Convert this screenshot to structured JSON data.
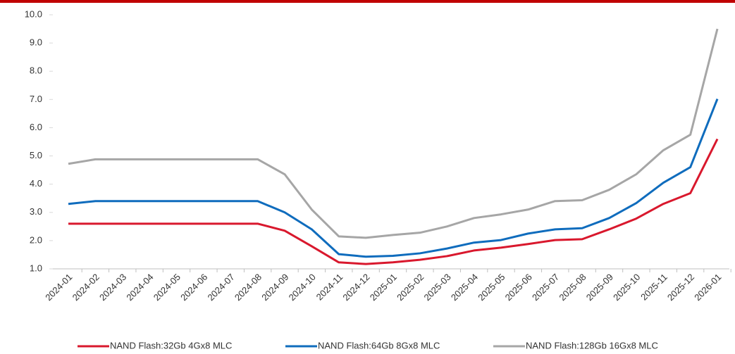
{
  "chart_data": {
    "type": "line",
    "categories": [
      "2024-01",
      "2024-02",
      "2024-03",
      "2024-04",
      "2024-05",
      "2024-06",
      "2024-07",
      "2024-08",
      "2024-09",
      "2024-10",
      "2024-11",
      "2024-12",
      "2025-01",
      "2025-02",
      "2025-03",
      "2025-04",
      "2025-05",
      "2025-06",
      "2025-07",
      "2025-08",
      "2025-09",
      "2025-10",
      "2025-11",
      "2025-12",
      "2026-01"
    ],
    "series": [
      {
        "name": "NAND Flash:32Gb 4Gx8 MLC",
        "color": "#d9182d",
        "values": [
          2.6,
          2.6,
          2.6,
          2.6,
          2.6,
          2.6,
          2.6,
          2.6,
          2.35,
          1.8,
          1.23,
          1.17,
          1.23,
          1.32,
          1.45,
          1.65,
          1.75,
          1.88,
          2.02,
          2.05,
          2.4,
          2.78,
          3.3,
          3.68,
          5.6
        ]
      },
      {
        "name": "NAND Flash:64Gb 8Gx8 MLC",
        "color": "#0f6cbd",
        "values": [
          3.3,
          3.4,
          3.4,
          3.4,
          3.4,
          3.4,
          3.4,
          3.4,
          3.0,
          2.4,
          1.52,
          1.43,
          1.46,
          1.55,
          1.72,
          1.93,
          2.02,
          2.25,
          2.4,
          2.44,
          2.8,
          3.33,
          4.05,
          4.6,
          7.02
        ]
      },
      {
        "name": "NAND Flash:128Gb 16Gx8 MLC",
        "color": "#a6a6a6",
        "values": [
          4.72,
          4.88,
          4.88,
          4.88,
          4.88,
          4.88,
          4.88,
          4.88,
          4.35,
          3.1,
          2.15,
          2.1,
          2.2,
          2.28,
          2.5,
          2.8,
          2.93,
          3.1,
          3.4,
          3.43,
          3.8,
          4.35,
          5.2,
          5.75,
          9.5
        ]
      }
    ],
    "ylim": [
      1,
      10
    ],
    "yticks": [
      {
        "value": 1,
        "label": "1.0"
      },
      {
        "value": 2,
        "label": "2.0"
      },
      {
        "value": 3,
        "label": "3.0"
      },
      {
        "value": 4,
        "label": "4.0"
      },
      {
        "value": 5,
        "label": "5.0"
      },
      {
        "value": 6,
        "label": "6.0"
      },
      {
        "value": 7,
        "label": "7.0"
      },
      {
        "value": 8,
        "label": "8.0"
      },
      {
        "value": 9,
        "label": "9.0"
      },
      {
        "value": 10,
        "label": "10.0"
      }
    ],
    "grid": false,
    "legend": "bottom"
  }
}
